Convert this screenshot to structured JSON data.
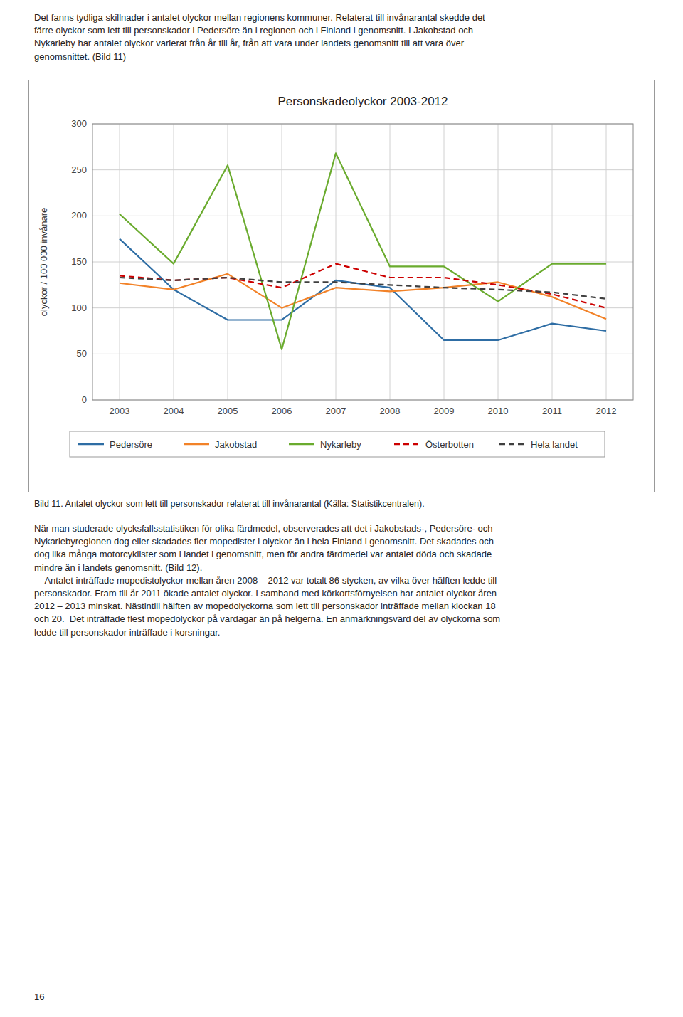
{
  "text_above": "Det fanns tydliga skillnader i antalet olyckor mellan regionens kommuner. Relaterat till invånarantal skedde det\nfärre olyckor som lett till personskador i Pedersöre än i regionen och i Finland i genomsnitt. I Jakobstad och\nNykarleby har antalet olyckor varierat från år till år, från att vara under landets genomsnitt till att vara över\ngenomsnittet. (Bild 11)",
  "caption": "Bild 11. Antalet olyckor som lett till personskador relaterat till invånarantal (Källa: Statistikcentralen).",
  "text_below": "När man studerade olycksfallsstatistiken för olika färdmedel, observerades att det i Jakobstads-, Pedersöre- och\nNykarlebyregionen dog eller skadades fler mopedister i olyckor än i hela Finland i genomsnitt. Det skadades och\ndog lika många motorcyklister som i landet i genomsnitt, men för andra färdmedel var antalet döda och skadade\nmindre än i landets genomsnitt. (Bild 12).\n    Antalet inträffade mopedistolyckor mellan åren 2008 – 2012 var totalt 86 stycken, av vilka över hälften ledde till\npersonskador. Fram till år 2011 ökade antalet olyckor. I samband med körkortsförnyelsen har antalet olyckor åren\n2012 – 2013 minskat. Nästintill hälften av mopedolyckorna som lett till personskador inträffade mellan klockan 18\noch 20.  Det inträffade flest mopedolyckor på vardagar än på helgerna. En anmärkningsvärd del av olyckorna som\nledde till personskador inträffade i korsningar.",
  "page_number": "16",
  "chart_data": {
    "type": "line",
    "title": "Personskadeolyckor 2003-2012",
    "y_label": "olyckor / 100 000 invånare",
    "x": [
      2003,
      2004,
      2005,
      2006,
      2007,
      2008,
      2009,
      2010,
      2011,
      2012
    ],
    "xlim": [
      2002.5,
      2012.5
    ],
    "xticks": [
      2003,
      2004,
      2005,
      2006,
      2007,
      2008,
      2009,
      2010,
      2011,
      2012
    ],
    "ylim": [
      0,
      300
    ],
    "yticks": [
      0,
      50,
      100,
      150,
      200,
      250,
      300
    ],
    "grid": true,
    "legend": "bottom",
    "series": [
      {
        "name": "Pedersöre",
        "color": "#2E6DA4",
        "line_style": "solid",
        "values": [
          175,
          120,
          87,
          87,
          130,
          122,
          65,
          65,
          83,
          75
        ]
      },
      {
        "name": "Jakobstad",
        "color": "#F28228",
        "line_style": "solid",
        "values": [
          127,
          120,
          137,
          100,
          122,
          118,
          122,
          128,
          112,
          88
        ]
      },
      {
        "name": "Nykarleby",
        "color": "#6AAB2E",
        "line_style": "solid",
        "values": [
          202,
          148,
          255,
          55,
          268,
          145,
          145,
          107,
          148,
          148
        ]
      },
      {
        "name": "Österbotten",
        "color": "#CC0000",
        "line_style": "dashed",
        "values": [
          135,
          130,
          133,
          122,
          148,
          133,
          133,
          125,
          115,
          100
        ]
      },
      {
        "name": "Hela landet",
        "color": "#404040",
        "line_style": "dashed",
        "values": [
          133,
          130,
          133,
          128,
          128,
          125,
          122,
          120,
          117,
          110
        ]
      }
    ]
  }
}
